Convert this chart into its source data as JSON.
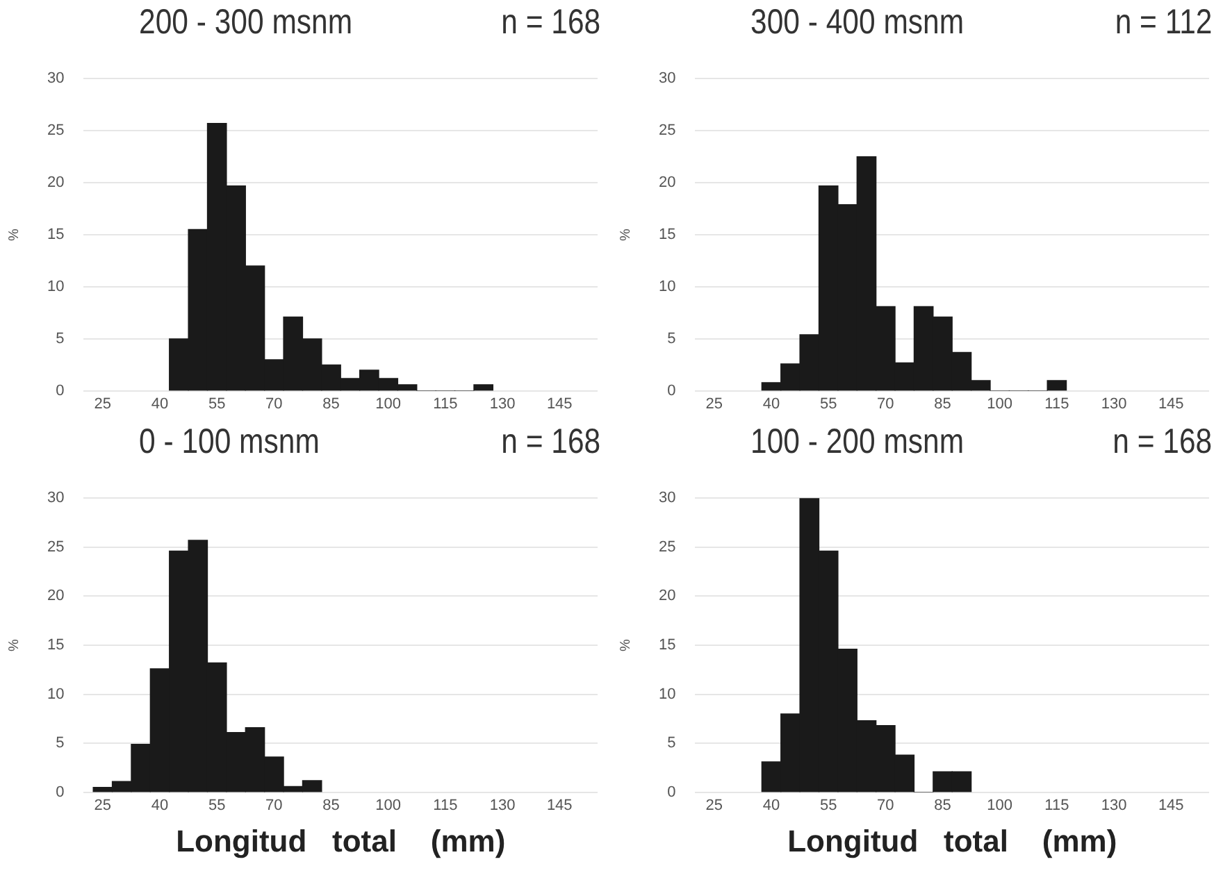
{
  "chart_data": [
    {
      "type": "histogram",
      "title": "200 - 300 msnm",
      "annotations": [
        "n = 168"
      ],
      "ylabel": "%",
      "bins": [
        42.5,
        47.5,
        52.5,
        57.5,
        62.5,
        67.5,
        72.5,
        77.5,
        82.5,
        87.5,
        92.5,
        97.5,
        102.5,
        107.5,
        112.5,
        117.5,
        122.5,
        127.5
      ],
      "values": [
        5,
        15.5,
        25.7,
        19.7,
        12,
        3,
        7.1,
        5,
        2.5,
        1.2,
        2,
        1.2,
        0.6,
        0,
        0,
        0,
        0.6
      ],
      "color": "#1a1a1a",
      "xlim": [
        20,
        155
      ],
      "xticks": [
        25,
        40,
        55,
        70,
        85,
        100,
        115,
        130,
        145
      ],
      "ylim": [
        0,
        30
      ],
      "yticks": [
        0,
        5,
        10,
        15,
        20,
        25,
        30
      ],
      "grid": "y"
    },
    {
      "type": "histogram",
      "title": "300 - 400 msnm",
      "annotations": [
        "n = 112"
      ],
      "ylabel": "%",
      "bins": [
        37.5,
        42.5,
        47.5,
        52.5,
        57.5,
        62.5,
        67.5,
        72.5,
        77.5,
        82.5,
        87.5,
        92.5,
        97.5,
        102.5,
        107.5,
        112.5,
        117.5
      ],
      "values": [
        0.8,
        2.6,
        5.4,
        19.7,
        17.9,
        22.5,
        8.1,
        2.7,
        8.1,
        7.1,
        3.7,
        1,
        0,
        0,
        0,
        1
      ],
      "color": "#1a1a1a",
      "xlim": [
        20,
        155
      ],
      "xticks": [
        25,
        40,
        55,
        70,
        85,
        100,
        115,
        130,
        145
      ],
      "ylim": [
        0,
        30
      ],
      "yticks": [
        0,
        5,
        10,
        15,
        20,
        25,
        30
      ],
      "grid": "y"
    },
    {
      "type": "histogram",
      "title": "0 - 100 msnm",
      "annotations": [
        "n = 168"
      ],
      "xlabel": "Longitud   total    (mm)",
      "ylabel": "%",
      "bins": [
        22.5,
        27.5,
        32.5,
        37.5,
        42.5,
        47.5,
        52.5,
        57.5,
        62.5,
        67.5,
        72.5,
        77.5,
        82.5
      ],
      "values": [
        0.5,
        1.1,
        4.9,
        12.6,
        24.6,
        25.7,
        13.2,
        6.1,
        6.6,
        3.6,
        0.6,
        1.2
      ],
      "color": "#1a1a1a",
      "xlim": [
        20,
        155
      ],
      "xticks": [
        25,
        40,
        55,
        70,
        85,
        100,
        115,
        130,
        145
      ],
      "ylim": [
        0,
        30
      ],
      "yticks": [
        0,
        5,
        10,
        15,
        20,
        25,
        30
      ],
      "grid": "y"
    },
    {
      "type": "histogram",
      "title": "100 - 200 msnm",
      "annotations": [
        "n = 168"
      ],
      "xlabel": "Longitud   total    (mm)",
      "ylabel": "%",
      "bins": [
        37.5,
        42.5,
        47.5,
        52.5,
        57.5,
        62.5,
        67.5,
        72.5,
        77.5,
        82.5,
        87.5,
        92.5
      ],
      "values": [
        3.1,
        8,
        30,
        24.6,
        14.6,
        7.3,
        6.8,
        3.8,
        0,
        2.1,
        2.1
      ],
      "color": "#1a1a1a",
      "xlim": [
        20,
        155
      ],
      "xticks": [
        25,
        40,
        55,
        70,
        85,
        100,
        115,
        130,
        145
      ],
      "ylim": [
        0,
        30
      ],
      "yticks": [
        0,
        5,
        10,
        15,
        20,
        25,
        30
      ],
      "grid": "y"
    }
  ]
}
